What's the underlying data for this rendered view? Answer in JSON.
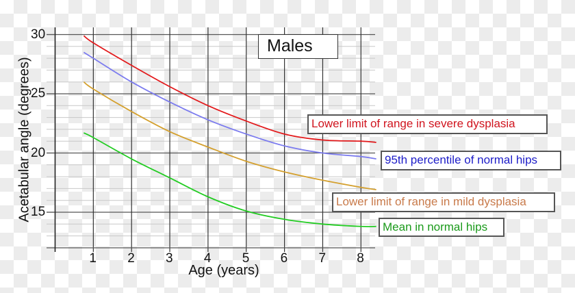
{
  "chart_data": {
    "type": "line",
    "title": "Males",
    "xlabel": "Age (years)",
    "ylabel": "Acetabular angle (degrees)",
    "xlim": [
      0,
      8.4
    ],
    "ylim": [
      12,
      31
    ],
    "x_ticks": [
      "1",
      "2",
      "3",
      "4",
      "5",
      "6",
      "7",
      "8"
    ],
    "y_ticks": [
      "30",
      "25",
      "20",
      "15"
    ],
    "grid": true,
    "x": [
      0.75,
      1,
      2,
      3,
      4,
      5,
      6,
      7,
      8,
      8.4
    ],
    "series": [
      {
        "name": "Lower limit of range in severe dysplasia",
        "color": "#e31a1c",
        "label_color": "#d0141e",
        "values": [
          29.9,
          29.3,
          27.4,
          25.6,
          24.0,
          22.7,
          21.6,
          21.1,
          21.0,
          20.9
        ]
      },
      {
        "name": "95th percentile of normal hips",
        "color": "#7b7bef",
        "label_color": "#1c1cc8",
        "values": [
          28.5,
          28.0,
          26.0,
          24.3,
          22.8,
          21.6,
          20.6,
          20.0,
          19.7,
          19.5
        ]
      },
      {
        "name": "Lower limit of range in mild dysplasia",
        "color": "#d4a02e",
        "label_color": "#c87a4a",
        "values": [
          26.0,
          25.4,
          23.5,
          21.8,
          20.5,
          19.3,
          18.4,
          17.7,
          17.1,
          16.9
        ]
      },
      {
        "name": "Mean in normal hips",
        "color": "#22cc22",
        "label_color": "#1a9a1a",
        "values": [
          21.7,
          21.3,
          19.5,
          17.9,
          16.3,
          15.1,
          14.4,
          14.0,
          13.8,
          13.8
        ]
      }
    ],
    "legend_position": "inline-right-labels"
  }
}
